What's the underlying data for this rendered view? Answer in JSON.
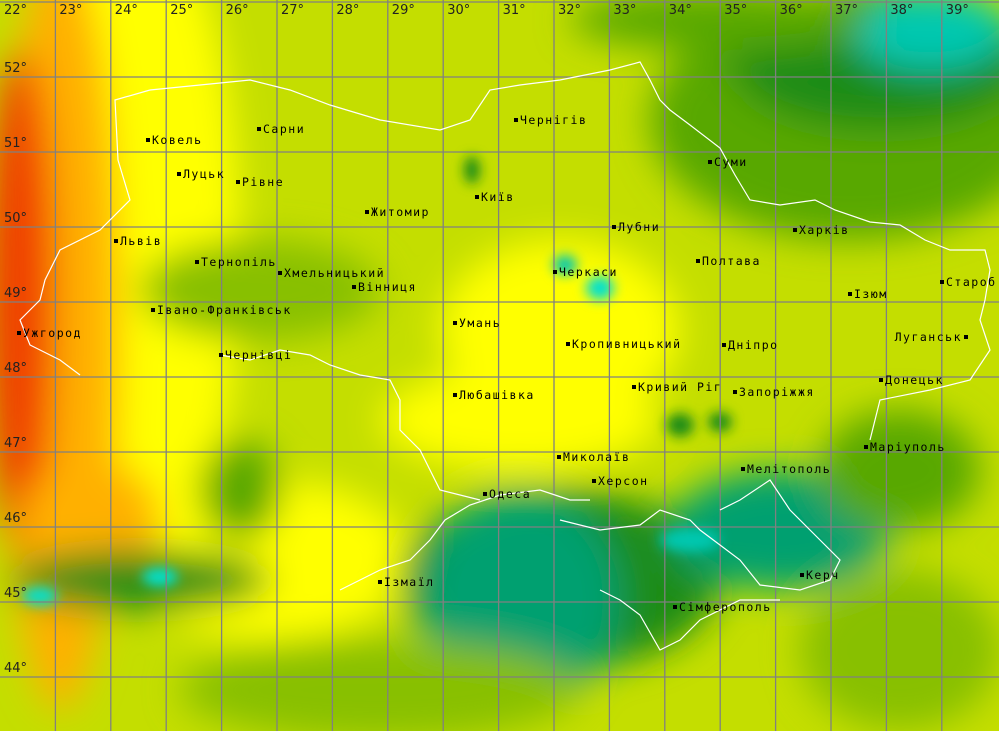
{
  "map": {
    "longitude_labels": [
      "22°",
      "23°",
      "24°",
      "25°",
      "26°",
      "27°",
      "28°",
      "29°",
      "30°",
      "31°",
      "32°",
      "33°",
      "34°",
      "35°",
      "36°",
      "37°",
      "38°",
      "39°"
    ],
    "latitude_labels": [
      "52°",
      "51°",
      "50°",
      "49°",
      "48°",
      "47°",
      "46°",
      "45°",
      "44°"
    ],
    "cities": [
      "Ковель",
      "Сарни",
      "Луцьк",
      "Рівне",
      "Житомир",
      "Київ",
      "Чернігів",
      "Суми",
      "Львів",
      "Тернопіль",
      "Хмельницький",
      "Вінниця",
      "Лубни",
      "Харків",
      "Черкаси",
      "Полтава",
      "Староб",
      "Ізюм",
      "Івано-Франківськ",
      "Ужгород",
      "Умань",
      "Кропивницький",
      "Дніпро",
      "Луганськ",
      "Чернівці",
      "Донецьк",
      "Любашівка",
      "Кривий Ріг",
      "Запоріжжя",
      "Маріуполь",
      "Миколаїв",
      "Мелітополь",
      "Херсон",
      "Одеса",
      "Керч",
      "Ізмаїл",
      "Сімферополь"
    ],
    "colors": {
      "land_mid": "#c4de00",
      "yellow": "#ffff00",
      "orange": "#ffb000",
      "red": "#f04000",
      "green": "#58a800",
      "dark_green": "#1e8c14",
      "sea": "#00a070",
      "cyan": "#00e0d0",
      "grid": "#808080",
      "border": "#ffffff"
    }
  }
}
